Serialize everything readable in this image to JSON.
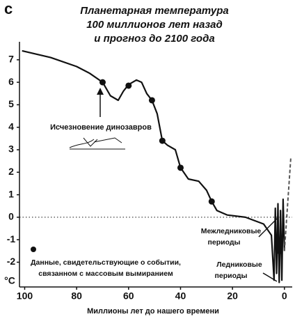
{
  "chart_data": {
    "type": "line",
    "panel_label": "c",
    "title": [
      "Планетарная температура",
      "100 миллионов лет назад",
      "и прогноз до 2100 года"
    ],
    "xlabel": "Миллионы лет до нашего времени",
    "ylabel": "°C",
    "xlim": [
      102,
      -3
    ],
    "ylim": [
      -3.1,
      7.8
    ],
    "xticks": [
      100,
      80,
      60,
      40,
      20,
      0
    ],
    "yticks": [
      7,
      6,
      5,
      4,
      3,
      2,
      1,
      0,
      -1,
      -2
    ],
    "zero_line": true,
    "series": [
      {
        "kind": "line",
        "color": "#111111",
        "x": [
          101,
          90,
          80,
          75,
          70,
          67,
          64,
          62,
          60,
          57,
          55,
          53,
          51,
          49,
          47,
          45,
          42,
          40,
          37,
          33,
          30,
          28,
          26,
          22,
          15,
          8,
          5,
          4,
          3.5,
          3,
          2.5,
          2,
          1.5,
          1,
          0.5,
          0
        ],
        "values": [
          7.4,
          7.1,
          6.7,
          6.4,
          6.0,
          5.4,
          5.2,
          5.6,
          5.9,
          6.1,
          6.0,
          5.5,
          5.2,
          4.6,
          3.4,
          3.2,
          3.0,
          2.2,
          1.7,
          1.6,
          1.2,
          0.7,
          0.3,
          0.1,
          0,
          -0.3,
          -0.8,
          -2.8,
          0.4,
          -2.5,
          0.6,
          -2.9,
          0.3,
          -2.8,
          0.8,
          -1.5
        ]
      },
      {
        "kind": "dashed",
        "color": "#555555",
        "x": [
          0,
          -2.5
        ],
        "values": [
          -1.5,
          2.7
        ]
      },
      {
        "kind": "dots",
        "color": "#111111",
        "x": [
          70,
          60,
          51,
          47,
          40,
          28,
          2
        ],
        "values": [
          6.0,
          5.85,
          5.2,
          3.4,
          2.2,
          0.7,
          -1.5
        ]
      }
    ],
    "annotations": {
      "extinction": "Исчезновение динозавров",
      "interglacial": [
        "Межледниковые",
        "периоды"
      ],
      "glacial": [
        "Ледниковые",
        "периоды"
      ],
      "legend": [
        "Данные, свидетельствующие о событии,",
        "связанном с массовым вымиранием"
      ]
    }
  }
}
